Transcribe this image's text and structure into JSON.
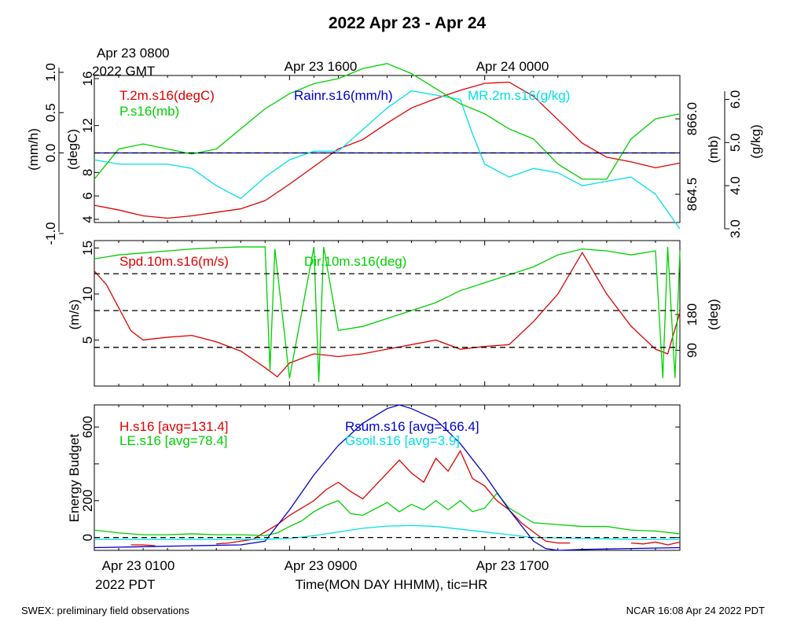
{
  "title": "2022 Apr 23 - Apr 24",
  "footer_left": "SWEX: preliminary field observations",
  "footer_right": "NCAR 16:08 Apr 24 2022 PDT",
  "top_axis": {
    "first_label_line1": "Apr 23 0800",
    "first_label_line2": "2022 GMT",
    "labels": [
      "Apr 23 1600",
      "Apr 24 0000"
    ]
  },
  "bottom_axis": {
    "first_label_line1": "Apr 23 0100",
    "first_label_line2": "2022 PDT",
    "labels": [
      "Apr 23 0900",
      "Apr 23 1700"
    ],
    "xlabel": "Time(MON DAY HHMM), tic=HR"
  },
  "colors": {
    "red": "#e00000",
    "green": "#00d000",
    "blue": "#0000d0",
    "cyan": "#00e0e8",
    "black": "#000000"
  },
  "chart_data": [
    {
      "type": "line",
      "panel": "top",
      "x_unit": "hours since Apr 23 0100 PDT",
      "xlim": [
        0,
        24
      ],
      "axes": {
        "temp": {
          "label": "(degC)",
          "ticks": [
            4,
            6,
            8,
            12,
            16
          ],
          "ylim": [
            4,
            16
          ]
        },
        "rain": {
          "label": "(mm/h)",
          "ticks": [
            "-1.0",
            "0.0",
            "0.5",
            "1.0"
          ],
          "tick_values": [
            -1.0,
            0.0,
            0.5,
            1.0
          ],
          "ylim": [
            -1,
            1
          ]
        },
        "pres": {
          "label": "(mb)",
          "ticks": [
            "864.5",
            "866.0"
          ],
          "tick_values": [
            864.5,
            866.0
          ],
          "ylim": [
            864.0,
            866.8
          ]
        },
        "mr": {
          "label": "(g/kg)",
          "ticks": [
            "3.0",
            "4.0",
            "5.0",
            "6.0"
          ],
          "tick_values": [
            3,
            4,
            5,
            6
          ],
          "ylim": [
            3,
            6.3
          ]
        }
      },
      "series": [
        {
          "name": "T.2m.s16(degC)",
          "color": "red",
          "axis": "temp",
          "x": [
            0,
            1,
            2,
            3,
            4,
            5,
            6,
            7,
            8,
            9,
            10,
            11,
            12,
            13,
            14,
            15,
            16,
            17,
            18,
            19,
            20,
            21,
            22,
            23,
            24
          ],
          "y": [
            5.2,
            4.8,
            4.3,
            4.1,
            4.3,
            4.6,
            4.9,
            5.6,
            7.0,
            8.5,
            10.0,
            10.8,
            12.2,
            13.5,
            14.3,
            15.0,
            15.6,
            15.7,
            14.5,
            12.5,
            10.5,
            9.3,
            8.9,
            8.4,
            8.8
          ]
        },
        {
          "name": "Rainr.s16(mm/h)",
          "color": "blue",
          "axis": "rain",
          "x": [
            0,
            24
          ],
          "y": [
            0.0,
            0.0
          ]
        },
        {
          "name": "MR.2m.s16(g/kg)",
          "color": "cyan",
          "axis": "mr",
          "x": [
            0,
            1,
            2,
            3,
            4,
            5,
            6,
            7,
            8,
            9,
            10,
            11,
            12,
            13,
            14,
            15,
            15.5,
            16,
            17,
            18,
            19,
            20,
            21,
            22,
            23,
            24
          ],
          "y": [
            4.6,
            4.5,
            4.5,
            4.5,
            4.4,
            4.0,
            3.7,
            4.2,
            4.6,
            4.8,
            4.8,
            5.3,
            5.8,
            6.2,
            6.1,
            6.0,
            5.2,
            4.5,
            4.2,
            4.4,
            4.3,
            4.0,
            4.1,
            4.2,
            3.8,
            3.0
          ]
        },
        {
          "name": "P.s16(mb)",
          "color": "green",
          "axis": "pres",
          "x": [
            0,
            1,
            2,
            3,
            4,
            5,
            6,
            7,
            8,
            9,
            10,
            11,
            12,
            13,
            14,
            15,
            16,
            17,
            18,
            19,
            20,
            21,
            22,
            23,
            24
          ],
          "y": [
            864.8,
            865.4,
            865.5,
            865.4,
            865.3,
            865.4,
            865.8,
            866.2,
            866.5,
            866.7,
            866.8,
            867.0,
            867.1,
            866.9,
            866.6,
            866.3,
            866.1,
            865.8,
            865.6,
            865.1,
            864.8,
            864.8,
            865.6,
            866.0,
            866.1
          ]
        }
      ],
      "hlines": [
        {
          "axis": "rain",
          "value": 0.0,
          "style": "dashed"
        }
      ]
    },
    {
      "type": "line",
      "panel": "middle",
      "x_unit": "hours since Apr 23 0100 PDT",
      "xlim": [
        0,
        24
      ],
      "axes": {
        "spd": {
          "label": "(m/s)",
          "ticks": [
            5,
            10,
            15
          ],
          "ylim": [
            0,
            15.8
          ]
        },
        "dir": {
          "label": "(deg)",
          "ticks": [
            90,
            180
          ],
          "ylim": [
            0,
            366
          ]
        }
      },
      "series": [
        {
          "name": "Spd.10m.s16(m/s)",
          "color": "red",
          "axis": "spd",
          "x": [
            0,
            0.5,
            1,
            1.5,
            2,
            3,
            4,
            5,
            6,
            7,
            7.5,
            8,
            9,
            10,
            11,
            12,
            13,
            14,
            15,
            16,
            17,
            18,
            19,
            20,
            21,
            22,
            23,
            23.5,
            24
          ],
          "y": [
            12.5,
            11.0,
            8.5,
            6.0,
            5.0,
            5.3,
            5.5,
            4.8,
            3.8,
            2.0,
            1.0,
            2.5,
            3.5,
            3.2,
            3.5,
            4.0,
            4.5,
            5.0,
            4.0,
            4.3,
            4.5,
            7.0,
            10.0,
            14.5,
            10.0,
            6.5,
            4.0,
            3.5,
            8.0
          ]
        },
        {
          "name": "Dir.10m.s16(deg)",
          "color": "green",
          "axis": "dir",
          "x": [
            0,
            1,
            2,
            3,
            4,
            5,
            6,
            7,
            7.2,
            7.4,
            8,
            9,
            9.2,
            9.4,
            10,
            11,
            12,
            13,
            14,
            15,
            16,
            17,
            18,
            19,
            20,
            21,
            22,
            23,
            23.3,
            23.5,
            23.8,
            24
          ],
          "y": [
            320,
            330,
            335,
            340,
            345,
            348,
            350,
            350,
            40,
            345,
            20,
            350,
            10,
            350,
            140,
            150,
            170,
            190,
            210,
            240,
            260,
            280,
            300,
            330,
            345,
            340,
            330,
            340,
            20,
            350,
            20,
            340
          ]
        }
      ],
      "hlines": [
        {
          "axis": "spd",
          "value": 4.2,
          "style": "dashed"
        },
        {
          "axis": "spd",
          "value": 8.2,
          "style": "dashed"
        },
        {
          "axis": "spd",
          "value": 12.2,
          "style": "dashed"
        }
      ]
    },
    {
      "type": "line",
      "panel": "bottom",
      "x_unit": "hours since Apr 23 0100 PDT",
      "xlim": [
        0,
        24
      ],
      "ylabel": "Energy Budget",
      "ylim": [
        -70,
        720
      ],
      "yticks": [
        0,
        200,
        400,
        600
      ],
      "yticks_labeled": [
        0,
        200,
        600
      ],
      "series": [
        {
          "name": "H.s16",
          "label": "H.s16 [avg=131.4]",
          "color": "red",
          "x": [
            1.5,
            2,
            2.5,
            5,
            5.5,
            6,
            6.5,
            7,
            7.5,
            8,
            8.5,
            9,
            9.5,
            10,
            10.5,
            11,
            12,
            12.5,
            13,
            13.5,
            14,
            14.5,
            15,
            15.5,
            16,
            16.5,
            17,
            17.5,
            18,
            18.5,
            19,
            19.5,
            22,
            22.5,
            23,
            23.5,
            24
          ],
          "y": [
            -40,
            -40,
            -45,
            -35,
            -30,
            -20,
            -10,
            30,
            70,
            120,
            160,
            200,
            260,
            300,
            250,
            210,
            350,
            420,
            350,
            300,
            430,
            360,
            470,
            320,
            280,
            200,
            150,
            80,
            30,
            -20,
            -30,
            -30,
            -30,
            -35,
            -25,
            -40,
            -25
          ]
        },
        {
          "name": "LE.s16",
          "label": "LE.s16 [avg=78.4]",
          "color": "green",
          "x": [
            0,
            1,
            2,
            3,
            4,
            5,
            6,
            7,
            7.5,
            8,
            8.5,
            9,
            9.5,
            10,
            10.5,
            11,
            12,
            12.5,
            13,
            13.5,
            14,
            14.5,
            15,
            15.5,
            16,
            16.5,
            17,
            18,
            19,
            20,
            21,
            22,
            23,
            24
          ],
          "y": [
            40,
            25,
            15,
            15,
            20,
            15,
            15,
            10,
            25,
            60,
            90,
            140,
            175,
            200,
            130,
            120,
            190,
            140,
            180,
            150,
            200,
            150,
            200,
            140,
            160,
            240,
            160,
            80,
            70,
            60,
            60,
            40,
            35,
            20
          ]
        },
        {
          "name": "Rsum.s16",
          "label": "Rsum.s16 [avg=166.4]",
          "color": "blue",
          "x": [
            0,
            2,
            4,
            6,
            7,
            8,
            9,
            10,
            11,
            12,
            12.5,
            13,
            14,
            15,
            16,
            17,
            18,
            18.5,
            19,
            20,
            22,
            24
          ],
          "y": [
            -55,
            -50,
            -45,
            -40,
            -20,
            150,
            340,
            500,
            620,
            700,
            720,
            700,
            640,
            510,
            340,
            150,
            -20,
            -60,
            -70,
            -65,
            -60,
            -55
          ]
        },
        {
          "name": "Gsoil.s16",
          "label": "Gsoil.s16 [avg=3.9]",
          "color": "cyan",
          "x": [
            0,
            4,
            6,
            7,
            8,
            9,
            10,
            11,
            12,
            13,
            14,
            15,
            16,
            17,
            18,
            20,
            22,
            24
          ],
          "y": [
            -10,
            -10,
            -10,
            -10,
            -5,
            10,
            30,
            50,
            62,
            65,
            60,
            45,
            30,
            15,
            0,
            -5,
            -10,
            -10
          ]
        }
      ],
      "hlines": [
        {
          "value": 0,
          "style": "dashed"
        }
      ]
    }
  ]
}
